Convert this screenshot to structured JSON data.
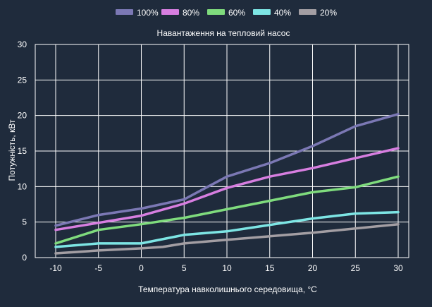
{
  "colors": {
    "background": "#1f2b3c",
    "text": "#ffffff",
    "grid": "#ffffff"
  },
  "chart_data": {
    "type": "line",
    "title": "Навантаження на тепловий насос",
    "xlabel": "Температура навколишнього середовища, °C",
    "ylabel": "Потужність, кВт",
    "x": [
      -10,
      -5,
      0,
      5,
      10,
      15,
      20,
      25,
      30
    ],
    "x_ticks": [
      "-10",
      "-5",
      "0",
      "5",
      "10",
      "15",
      "20",
      "25",
      "30"
    ],
    "y_ticks": [
      "0",
      "5",
      "10",
      "15",
      "20",
      "25",
      "30"
    ],
    "xlim": [
      -10,
      30
    ],
    "ylim": [
      0,
      30
    ],
    "grid": true,
    "legend_position": "top-center",
    "series": [
      {
        "name": "100%",
        "color": "#7b78b4",
        "values": [
          {
            "x": -10,
            "y": 4.5
          },
          {
            "x": -5,
            "y": 6.0
          },
          {
            "x": 0,
            "y": 6.9
          },
          {
            "x": 5,
            "y": 8.2
          },
          {
            "x": 7.5,
            "y": 9.8
          },
          {
            "x": 10,
            "y": 11.4
          },
          {
            "x": 15,
            "y": 13.3
          },
          {
            "x": 20,
            "y": 15.7
          },
          {
            "x": 25,
            "y": 18.5
          },
          {
            "x": 30,
            "y": 20.2
          }
        ]
      },
      {
        "name": "80%",
        "color": "#d77ee0",
        "values": [
          {
            "x": -10,
            "y": 3.9
          },
          {
            "x": -5,
            "y": 4.9
          },
          {
            "x": 0,
            "y": 5.9
          },
          {
            "x": 5,
            "y": 7.6
          },
          {
            "x": 10,
            "y": 9.8
          },
          {
            "x": 15,
            "y": 11.4
          },
          {
            "x": 20,
            "y": 12.6
          },
          {
            "x": 25,
            "y": 14.0
          },
          {
            "x": 30,
            "y": 15.4
          }
        ]
      },
      {
        "name": "60%",
        "color": "#7fdb7d",
        "values": [
          {
            "x": -10,
            "y": 2.0
          },
          {
            "x": -5,
            "y": 3.9
          },
          {
            "x": 0,
            "y": 4.7
          },
          {
            "x": 5,
            "y": 5.6
          },
          {
            "x": 10,
            "y": 6.8
          },
          {
            "x": 15,
            "y": 8.0
          },
          {
            "x": 20,
            "y": 9.2
          },
          {
            "x": 25,
            "y": 9.9
          },
          {
            "x": 30,
            "y": 11.4
          }
        ]
      },
      {
        "name": "40%",
        "color": "#7de5e4",
        "values": [
          {
            "x": -10,
            "y": 1.5
          },
          {
            "x": -5,
            "y": 2.0
          },
          {
            "x": 0,
            "y": 2.0
          },
          {
            "x": 5,
            "y": 3.2
          },
          {
            "x": 10,
            "y": 3.7
          },
          {
            "x": 15,
            "y": 4.6
          },
          {
            "x": 20,
            "y": 5.5
          },
          {
            "x": 25,
            "y": 6.2
          },
          {
            "x": 30,
            "y": 6.4
          }
        ]
      },
      {
        "name": "20%",
        "color": "#a39ea3",
        "values": [
          {
            "x": -10,
            "y": 0.6
          },
          {
            "x": -5,
            "y": 1.0
          },
          {
            "x": 0,
            "y": 1.3
          },
          {
            "x": 2.5,
            "y": 1.5
          },
          {
            "x": 5,
            "y": 2.0
          },
          {
            "x": 10,
            "y": 2.5
          },
          {
            "x": 15,
            "y": 3.0
          },
          {
            "x": 20,
            "y": 3.5
          },
          {
            "x": 25,
            "y": 4.1
          },
          {
            "x": 30,
            "y": 4.7
          }
        ]
      }
    ]
  }
}
